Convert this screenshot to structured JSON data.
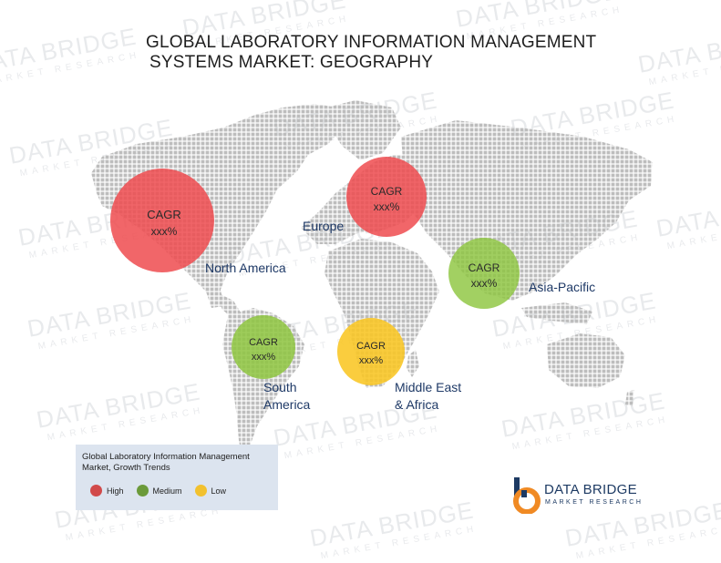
{
  "title": {
    "line1": "GLOBAL LABORATORY INFORMATION MANAGEMENT",
    "line2": "SYSTEMS MARKET: GEOGRAPHY"
  },
  "watermark": {
    "text": "DATA BRIDGE",
    "subtext": "MARKET RESEARCH"
  },
  "colors": {
    "high": "#ee4b4f",
    "medium": "#8ec63f",
    "low": "#f9c623",
    "land": "#bdbdbd",
    "label": "#1f3a67"
  },
  "regions": [
    {
      "name": "North America",
      "growth": "high",
      "cagr_label": "CAGR",
      "cagr_value": "xxx%"
    },
    {
      "name": "Europe",
      "growth": "high",
      "cagr_label": "CAGR",
      "cagr_value": "xxx%"
    },
    {
      "name": "Asia-Pacific",
      "growth": "medium",
      "cagr_label": "CAGR",
      "cagr_value": "xxx%"
    },
    {
      "name": "South America",
      "name_lines": [
        "South",
        "America"
      ],
      "growth": "medium",
      "cagr_label": "CAGR",
      "cagr_value": "xxx%"
    },
    {
      "name": "Middle East & Africa",
      "name_lines": [
        "Middle East",
        "& Africa"
      ],
      "growth": "low",
      "cagr_label": "CAGR",
      "cagr_value": "xxx%"
    }
  ],
  "legend": {
    "title_line1": "Global Laboratory Information Management",
    "title_line2": "Market, Growth Trends",
    "items": [
      {
        "label": "High",
        "color": "#ee4b4f"
      },
      {
        "label": "Medium",
        "color": "#8ec63f"
      },
      {
        "label": "Low",
        "color": "#f9c623"
      }
    ]
  },
  "logo": {
    "line1": "DATA BRIDGE",
    "line2": "MARKET RESEARCH"
  }
}
